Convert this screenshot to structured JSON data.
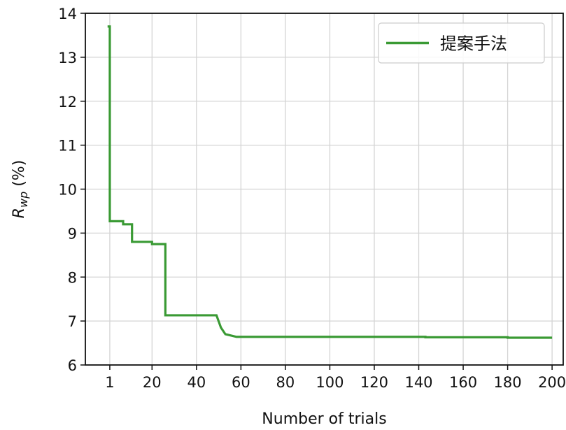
{
  "chart_data": {
    "type": "line",
    "xlabel": "Number of trials",
    "ylabel_main": "R",
    "ylabel_sub": "wp",
    "ylabel_suffix": " (%)",
    "xlim": [
      -10,
      205
    ],
    "ylim": [
      6,
      14
    ],
    "xticks": [
      1,
      20,
      40,
      60,
      80,
      100,
      120,
      140,
      160,
      180,
      200
    ],
    "yticks": [
      6,
      7,
      8,
      9,
      10,
      11,
      12,
      13,
      14
    ],
    "grid": true,
    "legend_position": "top-right",
    "series": [
      {
        "name": "提案手法",
        "color": "#3a9a34",
        "x": [
          0,
          1,
          1,
          7,
          7,
          11,
          11,
          20,
          20,
          24,
          24,
          26,
          26,
          49,
          49,
          51,
          51,
          53,
          53,
          58,
          58,
          143,
          143,
          180,
          180,
          200
        ],
        "y": [
          13.7,
          13.7,
          9.27,
          9.27,
          9.2,
          9.2,
          8.8,
          8.8,
          8.75,
          8.75,
          8.75,
          8.75,
          7.13,
          7.13,
          7.13,
          6.85,
          6.85,
          6.7,
          6.7,
          6.64,
          6.64,
          6.64,
          6.63,
          6.63,
          6.62,
          6.62
        ]
      }
    ]
  }
}
